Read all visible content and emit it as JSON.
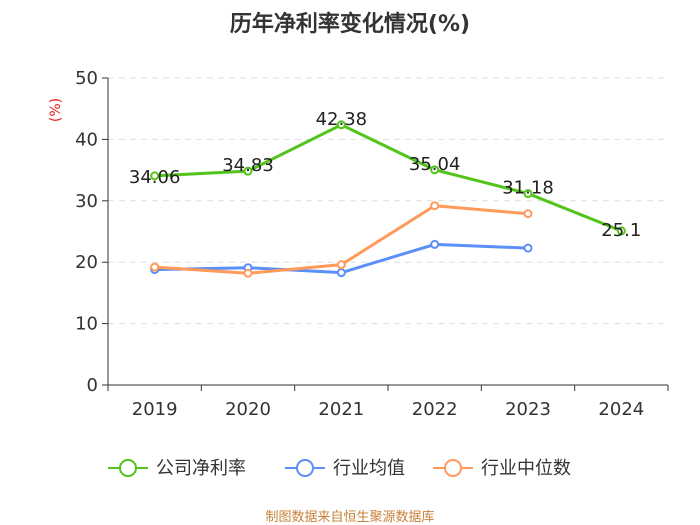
{
  "chart_data": {
    "type": "line",
    "title": "历年净利率变化情况(%)",
    "ylabel": "(%)",
    "xlabel": "",
    "categories": [
      "2019",
      "2020",
      "2021",
      "2022",
      "2023",
      "2024"
    ],
    "ylim": [
      0,
      50
    ],
    "yticks": [
      0,
      10,
      20,
      30,
      40,
      50
    ],
    "grid": true,
    "legend_position": "bottom",
    "series": [
      {
        "name": "公司净利率",
        "color": "#52c41a",
        "values": [
          34.06,
          34.83,
          42.38,
          35.04,
          31.18,
          25.1
        ],
        "labels": [
          "34.06",
          "34.83",
          "42.38",
          "35.04",
          "31.18",
          "25.1"
        ]
      },
      {
        "name": "行业均值",
        "color": "#5b8ff9",
        "values": [
          18.8,
          19.1,
          18.3,
          22.9,
          22.3,
          null
        ]
      },
      {
        "name": "行业中位数",
        "color": "#ff9a5a",
        "values": [
          19.2,
          18.2,
          19.6,
          29.2,
          27.9,
          null
        ]
      }
    ],
    "source_note": "制图数据来自恒生聚源数据库"
  },
  "colors": {
    "axis": "#333333",
    "grid": "#dddddd",
    "unit": "#e02020",
    "footer": "#c8813a"
  }
}
